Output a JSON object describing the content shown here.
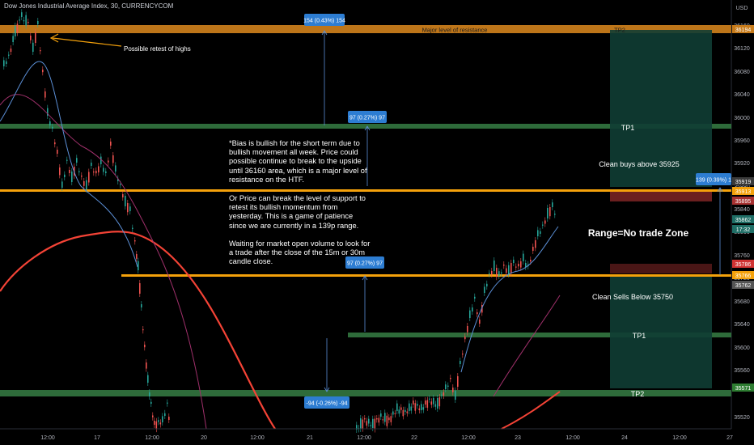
{
  "header": {
    "title": "Dow Jones Industrial Average Index, 30, CURRENCYCOM"
  },
  "price_axis": {
    "currency": "USD",
    "ticks": [
      "36200",
      "36160",
      "36120",
      "36080",
      "36040",
      "36000",
      "35960",
      "35920",
      "35880",
      "35840",
      "35800",
      "35760",
      "35720",
      "35680",
      "35640",
      "35600",
      "35560",
      "35520"
    ],
    "tags": [
      {
        "label": "36194",
        "color": "#c77b1a"
      },
      {
        "label": "35919",
        "color": "#3a3a3a"
      },
      {
        "label": "35913",
        "color": "#f4a10b"
      },
      {
        "label": "35895",
        "color": "#a83232"
      },
      {
        "label": "35862",
        "color": "#1f6e66"
      },
      {
        "label": "17:32",
        "color": "#1f6e66"
      },
      {
        "label": "35786",
        "color": "#d13333"
      },
      {
        "label": "35766",
        "color": "#f4a10b"
      },
      {
        "label": "35762",
        "color": "#555555"
      },
      {
        "label": "35571",
        "color": "#2e7d32"
      }
    ]
  },
  "time_axis": {
    "labels": [
      "12:00",
      "17",
      "12:00",
      "20",
      "12:00",
      "21",
      "12:00",
      "22",
      "12:00",
      "23",
      "12:00",
      "24",
      "12:00",
      "27"
    ]
  },
  "annotations": {
    "major_resistance": "Major level of resistance",
    "retest": "Possible retest of highs",
    "tp2_top": "TP2",
    "tp1_top": "TP1",
    "tp1_bottom": "TP1",
    "tp2_bottom": "TP2",
    "clean_buys": "Clean buys above 35925",
    "clean_sells": "Clean Sells Below 35750",
    "range": "Range=No trade Zone",
    "measure_1": "154 (0.43%) 154",
    "measure_2": "97 (0.27%) 97",
    "measure_3": "97 (0.27%) 97",
    "measure_4": "-94 (-0.26%) -94",
    "measure_5": "139 (0.39%) 1"
  },
  "notes": {
    "p1": "*Bias is bullish for the short term due to bullish movement all week. Price could possible continue to break to the upside until 36160 area, which is a major level of resistance on the HTF.",
    "p2": "Or Price can break the level of support to retest its bullish momentum from yesterday. This is a game of patience since we are currently in a 139p range.",
    "p3": "Waiting for market open volume to look for a trade after the close of the 15m or 30m candle close."
  },
  "colors": {
    "up": "#26a69a",
    "down": "#ef5350",
    "orange": "#f4a10b",
    "green_zone": "#2e6b3a",
    "ma_red": "#f44336",
    "ma_pink": "#a0306b"
  }
}
